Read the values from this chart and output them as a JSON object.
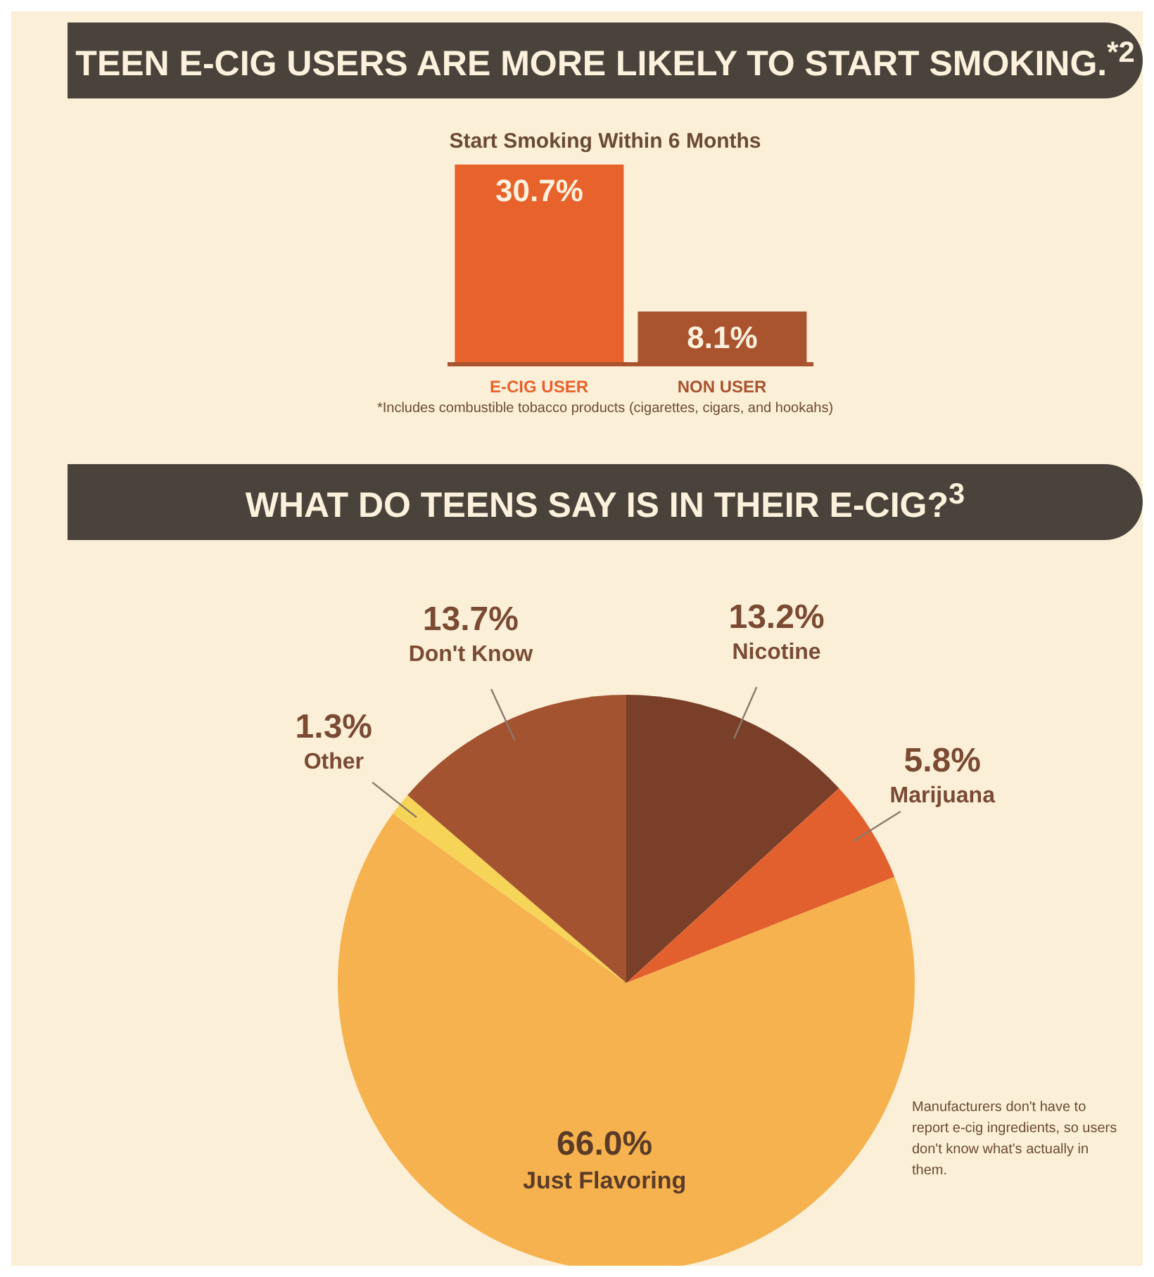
{
  "chart_data": [
    {
      "type": "bar",
      "title": "TEEN E-CIG USERS ARE MORE LIKELY TO START SMOKING.$^{*2}$",
      "subtitle": "Start Smoking Within 6 Months",
      "categories": [
        "E-CIG USER",
        "NON USER"
      ],
      "values": [
        30.7,
        8.1
      ],
      "colors": [
        "#e8622c",
        "#a9532f"
      ],
      "value_labels": [
        "30.7%",
        "8.1%"
      ],
      "annotations": [
        "*Includes combustible tobacco products (cigarettes, cigars, and hookahs)"
      ]
    },
    {
      "type": "pie",
      "title": "WHAT DO TEENS SAY IS IN THEIR E-CIG?$^{3}$",
      "categories": [
        "Nicotine",
        "Marijuana",
        "Just Flavoring",
        "Other",
        "Don't Know"
      ],
      "values": [
        13.2,
        5.8,
        66.0,
        1.3,
        13.7
      ],
      "colors": [
        "#7a3f28",
        "#e2602e",
        "#f6b24e",
        "#f6d458",
        "#a3532f"
      ],
      "value_labels": [
        "13.2%",
        "5.8%",
        "66.0%",
        "1.3%",
        "13.7%"
      ],
      "annotations": [
        "Manufacturers don't have to report e-cig ingredients, so users don't know what's actually in them."
      ]
    }
  ]
}
